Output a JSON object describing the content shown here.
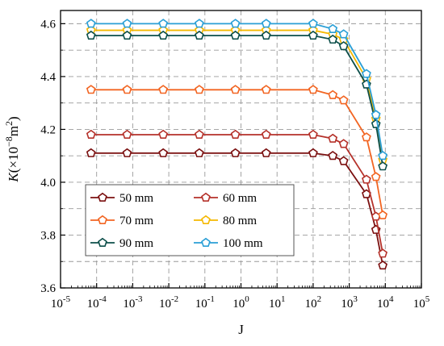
{
  "chart_data": {
    "type": "line",
    "xlabel": "J",
    "xscale": "log",
    "xlim": [
      1e-05,
      100000.0
    ],
    "x_ticks": [
      {
        "value": 1e-05,
        "base": "10",
        "exp": "-5"
      },
      {
        "value": 0.0001,
        "base": "10",
        "exp": "-4"
      },
      {
        "value": 0.001,
        "base": "10",
        "exp": "-3"
      },
      {
        "value": 0.01,
        "base": "10",
        "exp": "-2"
      },
      {
        "value": 0.1,
        "base": "10",
        "exp": "-1"
      },
      {
        "value": 1.0,
        "base": "10",
        "exp": "0"
      },
      {
        "value": 10.0,
        "base": "10",
        "exp": "1"
      },
      {
        "value": 100.0,
        "base": "10",
        "exp": "2"
      },
      {
        "value": 1000.0,
        "base": "10",
        "exp": "3"
      },
      {
        "value": 10000.0,
        "base": "10",
        "exp": "4"
      },
      {
        "value": 100000.0,
        "base": "10",
        "exp": "5"
      }
    ],
    "ylabel": {
      "main": "K(×10",
      "exp": "−8",
      "unit": "m",
      "unit_exp": "2",
      "close": ")"
    },
    "ylim": [
      3.6,
      4.65
    ],
    "y_ticks": [
      {
        "value": 3.6,
        "label": "3.6"
      },
      {
        "value": 3.8,
        "label": "3.8"
      },
      {
        "value": 4.0,
        "label": "4.0"
      },
      {
        "value": 4.2,
        "label": "4.2"
      },
      {
        "value": 4.4,
        "label": "4.4"
      },
      {
        "value": 4.6,
        "label": "4.6"
      }
    ],
    "grid": true,
    "legend_placement": "lower-left",
    "marker": "pentagon",
    "x": [
      7e-05,
      0.0007,
      0.007,
      0.07,
      0.7,
      5,
      100,
      350,
      700,
      3000,
      5500,
      8500
    ],
    "series": [
      {
        "name": "50 mm",
        "color": "#7b1010",
        "values": [
          4.11,
          4.11,
          4.11,
          4.11,
          4.11,
          4.11,
          4.11,
          4.1,
          4.08,
          3.955,
          3.82,
          3.685
        ]
      },
      {
        "name": "60 mm",
        "color": "#b5312a",
        "values": [
          4.18,
          4.18,
          4.18,
          4.18,
          4.18,
          4.18,
          4.18,
          4.165,
          4.145,
          4.01,
          3.87,
          3.73
        ]
      },
      {
        "name": "70 mm",
        "color": "#f26522",
        "values": [
          4.35,
          4.35,
          4.35,
          4.35,
          4.35,
          4.35,
          4.35,
          4.33,
          4.31,
          4.17,
          4.02,
          3.875
        ]
      },
      {
        "name": "80 mm",
        "color": "#f5b800",
        "values": [
          4.575,
          4.575,
          4.575,
          4.575,
          4.575,
          4.575,
          4.575,
          4.56,
          4.54,
          4.39,
          4.24,
          4.085
        ]
      },
      {
        "name": "90 mm",
        "color": "#0d4f4a",
        "values": [
          4.555,
          4.555,
          4.555,
          4.555,
          4.555,
          4.555,
          4.555,
          4.54,
          4.515,
          4.37,
          4.22,
          4.06
        ]
      },
      {
        "name": "100 mm",
        "color": "#2a9fd6",
        "values": [
          4.6,
          4.6,
          4.6,
          4.6,
          4.6,
          4.6,
          4.6,
          4.58,
          4.56,
          4.41,
          4.255,
          4.1
        ]
      }
    ]
  }
}
